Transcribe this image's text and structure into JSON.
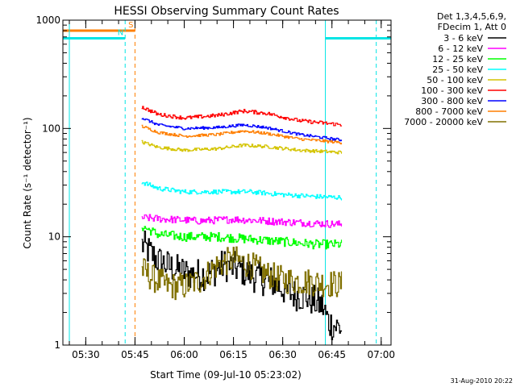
{
  "chart_data": {
    "type": "line",
    "title": "HESSI Observing Summary Count Rates",
    "xlabel": "Start Time (09-Jul-10 05:23:02)",
    "ylabel": "Count Rate (s⁻¹ detector⁻¹)",
    "x_start": "05:23:02",
    "xlim": [
      "05:23:02",
      "07:03:00"
    ],
    "x_ticks": [
      "05:30",
      "05:45",
      "06:00",
      "06:15",
      "06:30",
      "06:45",
      "07:00"
    ],
    "y_scale": "log",
    "ylim": [
      1,
      1000
    ],
    "y_tick_labels": [
      "1",
      "10",
      "100",
      "1000"
    ],
    "grid": false,
    "legend_position": "right",
    "legend_header": [
      "Det 1,3,4,5,6,9,",
      "FDecim 1, Att 0"
    ],
    "footer_date": "31-Aug-2010 20:22",
    "flags": [
      {
        "name": "S",
        "color": "#ff7f00",
        "level": 800,
        "segments": [
          [
            "05:23:02",
            "05:45:00"
          ]
        ]
      },
      {
        "name": "N",
        "color": "#00e5e5",
        "level": 680,
        "segments": [
          [
            "05:23:02",
            "05:42:00"
          ],
          [
            "06:43:00",
            "07:03:00"
          ]
        ]
      }
    ],
    "markers": [
      {
        "time": "05:25:00",
        "style": "solid",
        "color": "#00e5e5"
      },
      {
        "time": "05:42:00",
        "style": "dashed",
        "color": "#00e5e5"
      },
      {
        "time": "05:45:00",
        "style": "dashed",
        "color": "#ff7f00"
      },
      {
        "time": "06:43:00",
        "style": "solid",
        "color": "#00e5e5"
      },
      {
        "time": "06:58:30",
        "style": "dashed",
        "color": "#00e5e5"
      }
    ],
    "data_start": "05:47:00",
    "data_end": "06:48:00",
    "series": [
      {
        "name": "3 - 6 keV",
        "color": "#000000",
        "noise": 0.35,
        "points": [
          [
            "05:47",
            8.5
          ],
          [
            "05:52",
            6.0
          ],
          [
            "05:57",
            5.0
          ],
          [
            "06:02",
            4.5
          ],
          [
            "06:07",
            4.5
          ],
          [
            "06:12",
            5.5
          ],
          [
            "06:17",
            5.0
          ],
          [
            "06:22",
            4.2
          ],
          [
            "06:27",
            3.8
          ],
          [
            "06:32",
            3.0
          ],
          [
            "06:37",
            2.8
          ],
          [
            "06:42",
            2.3
          ],
          [
            "06:44",
            1.6
          ],
          [
            "06:48",
            1.4
          ]
        ]
      },
      {
        "name": "6 - 12 keV",
        "color": "#ff00ff",
        "noise": 0.08,
        "points": [
          [
            "05:47",
            15
          ],
          [
            "05:55",
            14.5
          ],
          [
            "06:05",
            14
          ],
          [
            "06:15",
            14.5
          ],
          [
            "06:25",
            14
          ],
          [
            "06:35",
            13.5
          ],
          [
            "06:48",
            13
          ]
        ]
      },
      {
        "name": "12 - 25 keV",
        "color": "#00ff00",
        "noise": 0.1,
        "points": [
          [
            "05:47",
            12.5
          ],
          [
            "05:52",
            10.5
          ],
          [
            "06:00",
            10
          ],
          [
            "06:10",
            10
          ],
          [
            "06:20",
            9.5
          ],
          [
            "06:30",
            9
          ],
          [
            "06:40",
            8.5
          ],
          [
            "06:48",
            8.5
          ]
        ]
      },
      {
        "name": "25 - 50 keV",
        "color": "#00ffff",
        "noise": 0.05,
        "points": [
          [
            "05:47",
            32
          ],
          [
            "05:52",
            28
          ],
          [
            "06:00",
            26
          ],
          [
            "06:10",
            26
          ],
          [
            "06:20",
            26
          ],
          [
            "06:30",
            24.5
          ],
          [
            "06:40",
            23.5
          ],
          [
            "06:48",
            23
          ]
        ]
      },
      {
        "name": "50 - 100 keV",
        "color": "#d4c400",
        "noise": 0.035,
        "points": [
          [
            "05:47",
            75
          ],
          [
            "05:52",
            67
          ],
          [
            "06:00",
            63
          ],
          [
            "06:10",
            65
          ],
          [
            "06:18",
            70
          ],
          [
            "06:25",
            68
          ],
          [
            "06:35",
            63
          ],
          [
            "06:48",
            60
          ]
        ]
      },
      {
        "name": "100 - 300 keV",
        "color": "#ff0000",
        "noise": 0.04,
        "points": [
          [
            "05:47",
            158
          ],
          [
            "05:52",
            135
          ],
          [
            "06:00",
            125
          ],
          [
            "06:10",
            132
          ],
          [
            "06:18",
            145
          ],
          [
            "06:25",
            138
          ],
          [
            "06:35",
            118
          ],
          [
            "06:48",
            108
          ]
        ]
      },
      {
        "name": "300 - 800 keV",
        "color": "#0000ff",
        "noise": 0.03,
        "points": [
          [
            "05:47",
            125
          ],
          [
            "05:52",
            108
          ],
          [
            "06:00",
            100
          ],
          [
            "06:10",
            102
          ],
          [
            "06:18",
            108
          ],
          [
            "06:25",
            102
          ],
          [
            "06:35",
            88
          ],
          [
            "06:48",
            78
          ]
        ]
      },
      {
        "name": "800 - 7000 keV",
        "color": "#ff7f00",
        "noise": 0.03,
        "points": [
          [
            "05:47",
            105
          ],
          [
            "05:52",
            92
          ],
          [
            "06:00",
            85
          ],
          [
            "06:10",
            88
          ],
          [
            "06:18",
            95
          ],
          [
            "06:25",
            90
          ],
          [
            "06:35",
            80
          ],
          [
            "06:48",
            74
          ]
        ]
      },
      {
        "name": "7000 - 20000 keV",
        "color": "#807000",
        "noise": 0.3,
        "points": [
          [
            "05:47",
            5.0
          ],
          [
            "05:50",
            4.2
          ],
          [
            "05:55",
            3.5
          ],
          [
            "06:00",
            3.5
          ],
          [
            "06:05",
            4.0
          ],
          [
            "06:10",
            5.5
          ],
          [
            "06:15",
            6.2
          ],
          [
            "06:20",
            5.5
          ],
          [
            "06:25",
            4.5
          ],
          [
            "06:30",
            4.0
          ],
          [
            "06:40",
            3.8
          ],
          [
            "06:48",
            3.6
          ]
        ]
      }
    ]
  }
}
